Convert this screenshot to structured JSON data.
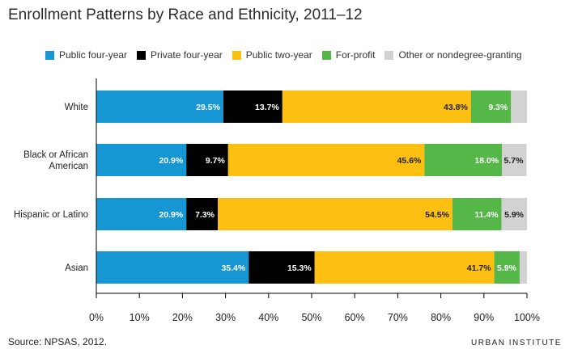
{
  "title": "Enrollment Patterns by Race and Ethnicity, 2011–12",
  "source": "Source: NPSAS, 2012.",
  "brand": "URBAN INSTITUTE",
  "chart_data": {
    "type": "bar",
    "orientation": "horizontal",
    "stacked": true,
    "title": "Enrollment Patterns by Race and Ethnicity, 2011–12",
    "xlabel": "",
    "ylabel": "",
    "xlim": [
      0,
      100
    ],
    "x_ticks": [
      "0%",
      "10%",
      "20%",
      "30%",
      "40%",
      "50%",
      "60%",
      "70%",
      "80%",
      "90%",
      "100%"
    ],
    "grid": false,
    "legend_position": "top",
    "categories": [
      "White",
      "Black or African American",
      "Hispanic or Latino",
      "Asian"
    ],
    "category_lines": [
      [
        "White"
      ],
      [
        "Black or African",
        "American"
      ],
      [
        "Hispanic or Latino"
      ],
      [
        "Asian"
      ]
    ],
    "series": [
      {
        "name": "Public four-year",
        "color": "#1696d2",
        "label_color": "#ffffff",
        "values": [
          29.5,
          20.9,
          20.9,
          35.4
        ],
        "labels": [
          "29.5%",
          "20.9%",
          "20.9%",
          "35.4%"
        ]
      },
      {
        "name": "Private four-year",
        "color": "#000000",
        "label_color": "#ffffff",
        "values": [
          13.7,
          9.7,
          7.3,
          15.3
        ],
        "labels": [
          "13.7%",
          "9.7%",
          "7.3%",
          "15.3%"
        ]
      },
      {
        "name": "Public two-year",
        "color": "#fdbf11",
        "label_color": "#222222",
        "values": [
          43.8,
          45.6,
          54.5,
          41.7
        ],
        "labels": [
          "43.8%",
          "45.6%",
          "54.5%",
          "41.7%"
        ]
      },
      {
        "name": "For-profit",
        "color": "#55b748",
        "label_color": "#ffffff",
        "values": [
          9.3,
          18.0,
          11.4,
          5.9
        ],
        "labels": [
          "9.3%",
          "18.0%",
          "11.4%",
          "5.9%"
        ]
      },
      {
        "name": "Other or nondegree-granting",
        "color": "#d2d2d2",
        "label_color": "#222222",
        "values": [
          3.7,
          5.7,
          5.9,
          1.7
        ],
        "labels": [
          "",
          "5.7%",
          "5.9%",
          ""
        ]
      }
    ]
  }
}
